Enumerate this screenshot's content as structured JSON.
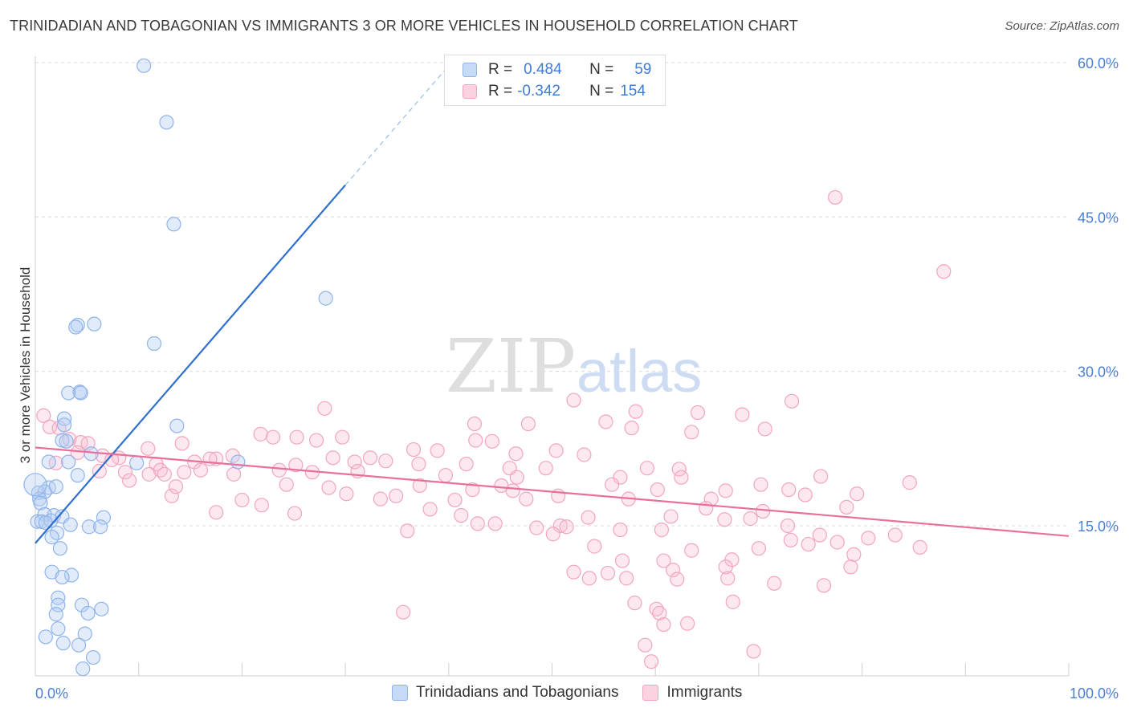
{
  "header": {
    "title": "TRINIDADIAN AND TOBAGONIAN VS IMMIGRANTS 3 OR MORE VEHICLES IN HOUSEHOLD CORRELATION CHART",
    "source": "Source: ZipAtlas.com"
  },
  "watermark": {
    "zip": "ZIP",
    "atlas": "atlas"
  },
  "legend": {
    "rows": [
      {
        "r_label": "R =",
        "r_value": "0.484",
        "n_label": "N =",
        "n_value": "59",
        "color": "#8fb4ea"
      },
      {
        "r_label": "R =",
        "r_value": "-0.342",
        "n_label": "N =",
        "n_value": "154",
        "color": "#f2a5bf"
      }
    ]
  },
  "bottom_legend": {
    "items": [
      {
        "label": "Trinidadians and Tobagonians",
        "color": "#8fb4ea"
      },
      {
        "label": "Immigrants",
        "color": "#f2a5bf"
      }
    ]
  },
  "chart_data": {
    "type": "scatter",
    "title": "TRINIDADIAN AND TOBAGONIAN VS IMMIGRANTS 3 OR MORE VEHICLES IN HOUSEHOLD CORRELATION CHART",
    "xlabel": "",
    "ylabel": "3 or more Vehicles in Household",
    "xlim": [
      0,
      100
    ],
    "ylim": [
      0,
      62
    ],
    "x_ticks": [
      "0.0%",
      "100.0%"
    ],
    "y_ticks": [
      {
        "value": 15,
        "label": "15.0%"
      },
      {
        "value": 30,
        "label": "30.0%"
      },
      {
        "value": 45,
        "label": "45.0%"
      },
      {
        "value": 60,
        "label": "60.0%"
      }
    ],
    "grid": true,
    "legend_position": "top-center",
    "series": [
      {
        "name": "Trinidadians and Tobagonians",
        "color": "#8fb4ea",
        "trend_color": "#2f6fd0",
        "trend": {
          "x0": 0,
          "y0": 13.3,
          "x1": 30,
          "y1": 48.1,
          "dash_to_x": 40,
          "dash_to_y": 59.7
        },
        "points": [
          [
            10.5,
            59.7
          ],
          [
            12.7,
            54.2
          ],
          [
            13.4,
            44.3
          ],
          [
            28.1,
            37.1
          ],
          [
            4.1,
            34.5
          ],
          [
            5.7,
            34.6
          ],
          [
            3.9,
            34.3
          ],
          [
            11.5,
            32.7
          ],
          [
            4.3,
            28.0
          ],
          [
            4.4,
            27.9
          ],
          [
            3.2,
            27.9
          ],
          [
            2.8,
            25.4
          ],
          [
            13.7,
            24.7
          ],
          [
            2.8,
            24.8
          ],
          [
            2.6,
            23.3
          ],
          [
            3.0,
            23.2
          ],
          [
            5.4,
            22.0
          ],
          [
            1.3,
            21.2
          ],
          [
            3.2,
            21.2
          ],
          [
            9.8,
            21.1
          ],
          [
            19.6,
            21.2
          ],
          [
            4.1,
            19.9
          ],
          [
            1.3,
            18.7
          ],
          [
            2.0,
            18.8
          ],
          [
            0.3,
            18.2
          ],
          [
            0.9,
            18.3
          ],
          [
            0.4,
            17.6
          ],
          [
            0.5,
            17.2
          ],
          [
            1.8,
            16.0
          ],
          [
            0.9,
            16.1
          ],
          [
            2.6,
            15.9
          ],
          [
            6.6,
            15.8
          ],
          [
            0.2,
            15.4
          ],
          [
            0.6,
            15.4
          ],
          [
            1.5,
            15.5
          ],
          [
            1.0,
            15.3
          ],
          [
            3.4,
            15.1
          ],
          [
            5.2,
            14.9
          ],
          [
            6.3,
            14.9
          ],
          [
            2.1,
            14.3
          ],
          [
            1.6,
            13.9
          ],
          [
            2.4,
            12.8
          ],
          [
            1.6,
            10.5
          ],
          [
            3.5,
            10.2
          ],
          [
            2.6,
            10.0
          ],
          [
            2.2,
            8.0
          ],
          [
            2.2,
            7.3
          ],
          [
            4.5,
            7.3
          ],
          [
            6.4,
            6.9
          ],
          [
            5.1,
            6.5
          ],
          [
            2.0,
            6.4
          ],
          [
            2.2,
            5.0
          ],
          [
            4.8,
            4.5
          ],
          [
            1.0,
            4.2
          ],
          [
            2.7,
            3.6
          ],
          [
            4.2,
            3.4
          ],
          [
            5.6,
            2.2
          ],
          [
            4.6,
            1.1
          ],
          [
            0.0,
            19.0
          ]
        ]
      },
      {
        "name": "Immigrants",
        "color": "#f2a5bf",
        "trend_color": "#e8709a",
        "trend": {
          "x0": 0,
          "y0": 22.6,
          "x1": 100,
          "y1": 14.0
        },
        "points": [
          [
            77.4,
            46.9
          ],
          [
            87.9,
            39.7
          ],
          [
            0.8,
            25.7
          ],
          [
            1.4,
            24.6
          ],
          [
            2.3,
            24.5
          ],
          [
            28.0,
            26.4
          ],
          [
            52.1,
            27.2
          ],
          [
            73.2,
            27.1
          ],
          [
            58.1,
            26.1
          ],
          [
            64.1,
            26.0
          ],
          [
            68.4,
            25.8
          ],
          [
            55.2,
            25.1
          ],
          [
            47.7,
            24.9
          ],
          [
            42.5,
            24.9
          ],
          [
            57.7,
            24.5
          ],
          [
            70.6,
            24.4
          ],
          [
            63.5,
            24.1
          ],
          [
            21.8,
            23.9
          ],
          [
            23.0,
            23.6
          ],
          [
            25.3,
            23.6
          ],
          [
            27.2,
            23.3
          ],
          [
            29.7,
            23.6
          ],
          [
            42.6,
            23.3
          ],
          [
            44.2,
            23.2
          ],
          [
            3.3,
            23.4
          ],
          [
            4.4,
            23.1
          ],
          [
            5.1,
            23.0
          ],
          [
            14.2,
            23.0
          ],
          [
            10.9,
            22.5
          ],
          [
            36.6,
            22.4
          ],
          [
            38.9,
            22.3
          ],
          [
            50.4,
            22.3
          ],
          [
            46.5,
            22.0
          ],
          [
            53.1,
            21.9
          ],
          [
            19.1,
            21.8
          ],
          [
            17.5,
            21.5
          ],
          [
            16.9,
            21.5
          ],
          [
            28.8,
            21.6
          ],
          [
            32.4,
            21.6
          ],
          [
            33.9,
            21.3
          ],
          [
            8.1,
            21.6
          ],
          [
            6.5,
            21.8
          ],
          [
            7.4,
            21.4
          ],
          [
            2.0,
            21.1
          ],
          [
            11.7,
            21.0
          ],
          [
            15.4,
            21.2
          ],
          [
            30.9,
            21.2
          ],
          [
            37.1,
            21.0
          ],
          [
            25.2,
            20.9
          ],
          [
            41.7,
            21.0
          ],
          [
            45.9,
            20.6
          ],
          [
            49.4,
            20.6
          ],
          [
            59.2,
            20.6
          ],
          [
            62.3,
            20.5
          ],
          [
            12.1,
            20.4
          ],
          [
            14.4,
            20.2
          ],
          [
            16.0,
            20.4
          ],
          [
            23.6,
            20.4
          ],
          [
            26.8,
            20.2
          ],
          [
            8.7,
            20.2
          ],
          [
            11.0,
            20.0
          ],
          [
            19.2,
            20.0
          ],
          [
            39.7,
            19.9
          ],
          [
            46.6,
            19.7
          ],
          [
            56.6,
            19.7
          ],
          [
            62.5,
            19.7
          ],
          [
            76.0,
            19.8
          ],
          [
            84.6,
            19.2
          ],
          [
            70.2,
            19.0
          ],
          [
            55.8,
            19.0
          ],
          [
            37.2,
            18.9
          ],
          [
            45.1,
            18.9
          ],
          [
            28.4,
            18.7
          ],
          [
            42.3,
            18.5
          ],
          [
            60.2,
            18.5
          ],
          [
            66.8,
            18.4
          ],
          [
            72.9,
            18.5
          ],
          [
            79.5,
            18.1
          ],
          [
            74.5,
            18.0
          ],
          [
            30.1,
            18.1
          ],
          [
            34.9,
            17.9
          ],
          [
            50.6,
            17.9
          ],
          [
            57.4,
            17.6
          ],
          [
            65.4,
            17.6
          ],
          [
            13.2,
            17.9
          ],
          [
            20.0,
            17.5
          ],
          [
            33.4,
            17.6
          ],
          [
            40.6,
            17.5
          ],
          [
            47.5,
            17.6
          ],
          [
            12.5,
            20.0
          ],
          [
            78.5,
            16.8
          ],
          [
            64.9,
            16.7
          ],
          [
            70.4,
            16.4
          ],
          [
            61.5,
            15.9
          ],
          [
            53.5,
            15.8
          ],
          [
            66.7,
            15.6
          ],
          [
            69.2,
            15.7
          ],
          [
            44.5,
            15.2
          ],
          [
            50.8,
            15.0
          ],
          [
            72.8,
            15.0
          ],
          [
            51.4,
            14.9
          ],
          [
            56.6,
            14.6
          ],
          [
            60.6,
            14.6
          ],
          [
            83.2,
            14.1
          ],
          [
            80.6,
            13.8
          ],
          [
            77.6,
            13.4
          ],
          [
            74.8,
            13.2
          ],
          [
            70.0,
            12.8
          ],
          [
            63.5,
            12.6
          ],
          [
            79.2,
            12.2
          ],
          [
            85.6,
            12.9
          ],
          [
            67.4,
            11.7
          ],
          [
            60.8,
            11.6
          ],
          [
            61.7,
            10.7
          ],
          [
            52.1,
            10.5
          ],
          [
            55.4,
            10.4
          ],
          [
            53.6,
            9.9
          ],
          [
            62.1,
            9.8
          ],
          [
            67.0,
            9.9
          ],
          [
            71.5,
            9.4
          ],
          [
            76.3,
            9.2
          ],
          [
            66.8,
            11.0
          ],
          [
            58.0,
            7.5
          ],
          [
            67.5,
            7.6
          ],
          [
            60.1,
            6.9
          ],
          [
            60.4,
            6.5
          ],
          [
            35.6,
            6.6
          ],
          [
            60.8,
            5.4
          ],
          [
            63.1,
            5.5
          ],
          [
            59.0,
            3.4
          ],
          [
            69.5,
            2.8
          ],
          [
            59.6,
            1.8
          ],
          [
            75.9,
            14.1
          ],
          [
            78.9,
            11.0
          ],
          [
            56.8,
            11.6
          ],
          [
            57.2,
            9.9
          ],
          [
            48.5,
            14.8
          ],
          [
            36.0,
            14.5
          ],
          [
            41.2,
            16.0
          ],
          [
            25.1,
            16.2
          ],
          [
            46.2,
            18.4
          ],
          [
            38.2,
            16.6
          ],
          [
            42.8,
            15.2
          ],
          [
            50.1,
            14.2
          ],
          [
            54.1,
            13.0
          ],
          [
            73.1,
            13.6
          ],
          [
            17.5,
            16.3
          ],
          [
            21.9,
            17.0
          ],
          [
            24.3,
            19.0
          ],
          [
            31.2,
            20.3
          ],
          [
            6.2,
            20.3
          ],
          [
            4.1,
            22.1
          ],
          [
            9.1,
            19.4
          ],
          [
            13.6,
            18.8
          ]
        ]
      }
    ]
  }
}
